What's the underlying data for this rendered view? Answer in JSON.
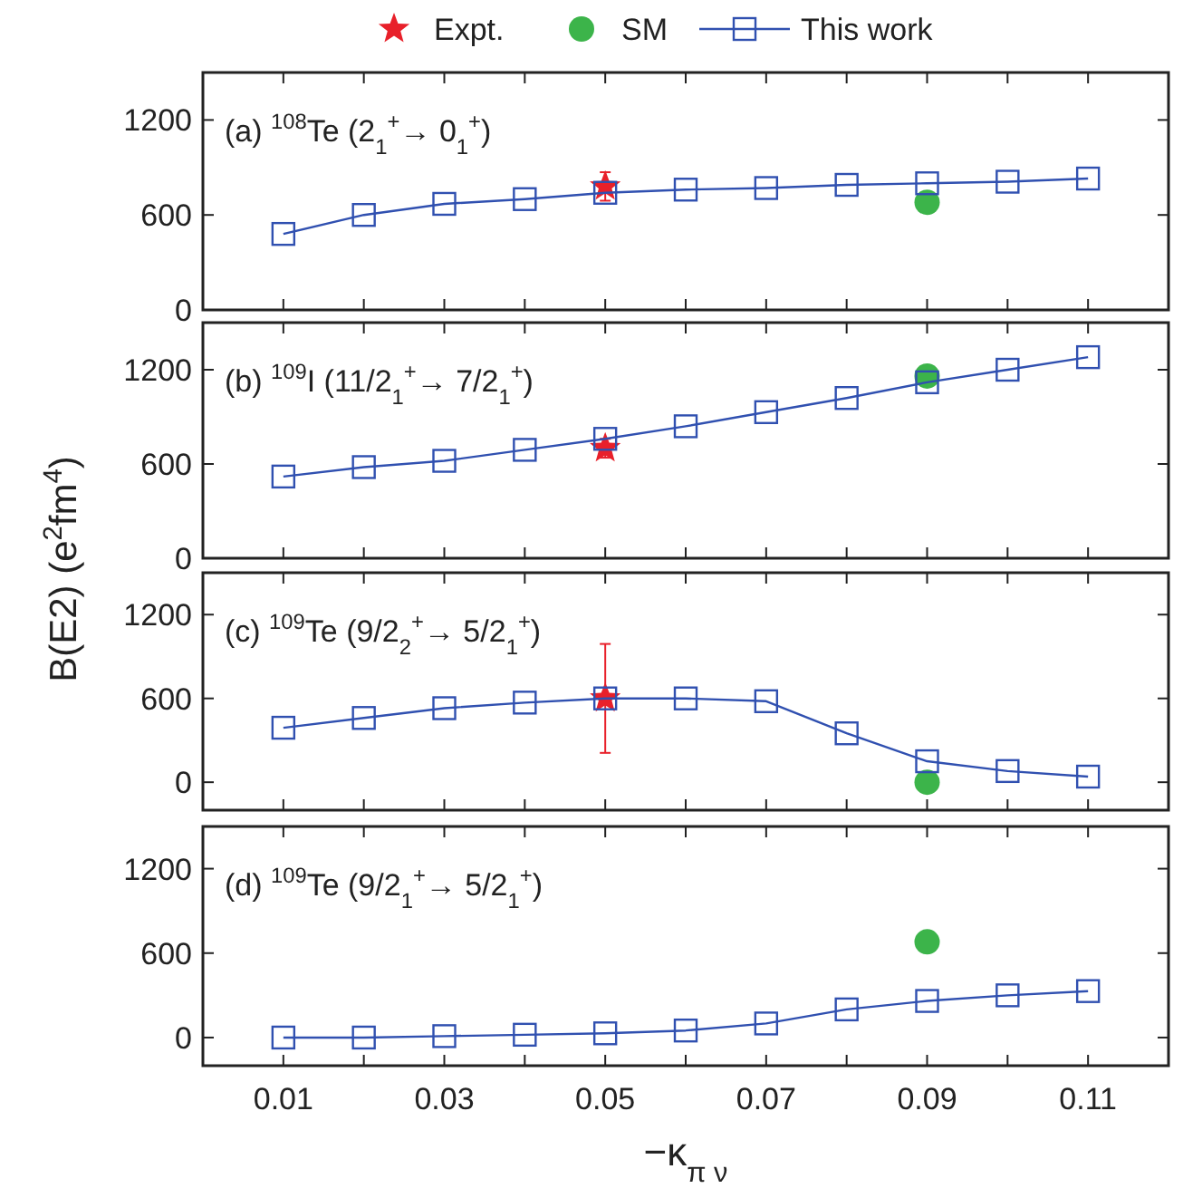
{
  "chart_data": [
    {
      "type": "line",
      "annotations": [
        "(a) $^{108}$Te  (2$_{1}$$^{+}$→ 0$_{1}$$^{+}$)"
      ],
      "legend": "top",
      "tick_labels": "y",
      "grid": false,
      "xlim": [
        0,
        0.12
      ],
      "xticks": [
        {
          "value": 0.01,
          "label": null
        },
        {
          "value": 0.02,
          "label": null
        },
        {
          "value": 0.03,
          "label": null
        },
        {
          "value": 0.04,
          "label": null
        },
        {
          "value": 0.05,
          "label": null
        },
        {
          "value": 0.06,
          "label": null
        },
        {
          "value": 0.07,
          "label": null
        },
        {
          "value": 0.08,
          "label": null
        },
        {
          "value": 0.09,
          "label": null
        },
        {
          "value": 0.1,
          "label": null
        },
        {
          "value": 0.11,
          "label": null
        }
      ],
      "ylim": [
        0,
        1500
      ],
      "yticks": [
        0,
        600,
        1200
      ],
      "series": [
        {
          "name": "Expt.",
          "type": "scatter",
          "marker": "star",
          "color": "#e8202a",
          "x": [
            0.05
          ],
          "values": [
            780
          ],
          "errors": [
            90
          ]
        },
        {
          "name": "SM",
          "type": "scatter",
          "marker": "circle",
          "color": "#3cb44a",
          "x": [
            0.09
          ],
          "values": [
            680
          ]
        },
        {
          "name": "This work",
          "marker": "square",
          "line_style": "solid",
          "color": "#3050b0",
          "x": [
            0.01,
            0.02,
            0.03,
            0.04,
            0.05,
            0.06,
            0.07,
            0.08,
            0.09,
            0.1,
            0.11
          ],
          "values": [
            480,
            600,
            670,
            700,
            740,
            760,
            770,
            790,
            800,
            810,
            830
          ]
        }
      ]
    },
    {
      "type": "line",
      "annotations": [
        "(b) $^{109}$I  (11/2$_{1}$$^{+}$→ 7/2$_{1}$$^{+}$)"
      ],
      "ylabel": "B(E2) (e$^{2}$fm$^{4}$)",
      "tick_labels": "y",
      "grid": false,
      "xlim": [
        0,
        0.12
      ],
      "xticks": [
        {
          "value": 0.01,
          "label": null
        },
        {
          "value": 0.02,
          "label": null
        },
        {
          "value": 0.03,
          "label": null
        },
        {
          "value": 0.04,
          "label": null
        },
        {
          "value": 0.05,
          "label": null
        },
        {
          "value": 0.06,
          "label": null
        },
        {
          "value": 0.07,
          "label": null
        },
        {
          "value": 0.08,
          "label": null
        },
        {
          "value": 0.09,
          "label": null
        },
        {
          "value": 0.1,
          "label": null
        },
        {
          "value": 0.11,
          "label": null
        }
      ],
      "ylim": [
        0,
        1500
      ],
      "yticks": [
        0,
        600,
        1200
      ],
      "series": [
        {
          "type": "scatter",
          "marker": "star",
          "color": "#e8202a",
          "x": [
            0.05
          ],
          "values": [
            700
          ],
          "errors": [
            60
          ]
        },
        {
          "type": "scatter",
          "marker": "circle",
          "color": "#3cb44a",
          "x": [
            0.09
          ],
          "values": [
            1160
          ]
        },
        {
          "marker": "square",
          "line_style": "solid",
          "color": "#3050b0",
          "x": [
            0.01,
            0.02,
            0.03,
            0.04,
            0.05,
            0.06,
            0.07,
            0.08,
            0.09,
            0.1,
            0.11
          ],
          "values": [
            520,
            580,
            620,
            690,
            760,
            840,
            930,
            1020,
            1120,
            1200,
            1280
          ]
        }
      ]
    },
    {
      "type": "line",
      "annotations": [
        "(c) $^{109}$Te  (9/2$_{2}$$^{+}$→ 5/2$_{1}$$^{+}$)"
      ],
      "tick_labels": "y",
      "grid": false,
      "xlim": [
        0,
        0.12
      ],
      "xticks": [
        {
          "value": 0.01,
          "label": null
        },
        {
          "value": 0.02,
          "label": null
        },
        {
          "value": 0.03,
          "label": null
        },
        {
          "value": 0.04,
          "label": null
        },
        {
          "value": 0.05,
          "label": null
        },
        {
          "value": 0.06,
          "label": null
        },
        {
          "value": 0.07,
          "label": null
        },
        {
          "value": 0.08,
          "label": null
        },
        {
          "value": 0.09,
          "label": null
        },
        {
          "value": 0.1,
          "label": null
        },
        {
          "value": 0.11,
          "label": null
        }
      ],
      "ylim": [
        -200,
        1500
      ],
      "yticks": [
        0,
        600,
        1200
      ],
      "series": [
        {
          "type": "scatter",
          "marker": "star",
          "color": "#e8202a",
          "x": [
            0.05
          ],
          "values": [
            600
          ],
          "errors": [
            390
          ]
        },
        {
          "type": "scatter",
          "marker": "circle",
          "color": "#3cb44a",
          "x": [
            0.09
          ],
          "values": [
            0
          ]
        },
        {
          "marker": "square",
          "line_style": "solid",
          "color": "#3050b0",
          "x": [
            0.01,
            0.02,
            0.03,
            0.04,
            0.05,
            0.06,
            0.07,
            0.08,
            0.09,
            0.1,
            0.11
          ],
          "values": [
            390,
            460,
            530,
            570,
            600,
            600,
            580,
            350,
            150,
            80,
            40
          ]
        }
      ]
    },
    {
      "type": "line",
      "annotations": [
        "(d) $^{109}$Te  (9/2$_{1}$$^{+}$→ 5/2$_{1}$$^{+}$)"
      ],
      "xlabel": "−κ$_{π ν}$",
      "grid": false,
      "xlim": [
        0,
        0.12
      ],
      "xticks": [
        {
          "value": 0.01,
          "label": "0.01"
        },
        {
          "value": 0.02,
          "label": null
        },
        {
          "value": 0.03,
          "label": "0.03"
        },
        {
          "value": 0.04,
          "label": null
        },
        {
          "value": 0.05,
          "label": "0.05"
        },
        {
          "value": 0.06,
          "label": null
        },
        {
          "value": 0.07,
          "label": "0.07"
        },
        {
          "value": 0.08,
          "label": null
        },
        {
          "value": 0.09,
          "label": "0.09"
        },
        {
          "value": 0.1,
          "label": null
        },
        {
          "value": 0.11,
          "label": "0.11"
        }
      ],
      "ylim": [
        -200,
        1500
      ],
      "yticks": [
        0,
        600,
        1200
      ],
      "series": [
        {
          "type": "scatter",
          "marker": "circle",
          "color": "#3cb44a",
          "x": [
            0.09
          ],
          "values": [
            680
          ]
        },
        {
          "marker": "square",
          "line_style": "solid",
          "color": "#3050b0",
          "x": [
            0.01,
            0.02,
            0.03,
            0.04,
            0.05,
            0.06,
            0.07,
            0.08,
            0.09,
            0.1,
            0.11
          ],
          "values": [
            0,
            0,
            10,
            20,
            30,
            50,
            100,
            200,
            260,
            300,
            330
          ]
        }
      ]
    }
  ]
}
